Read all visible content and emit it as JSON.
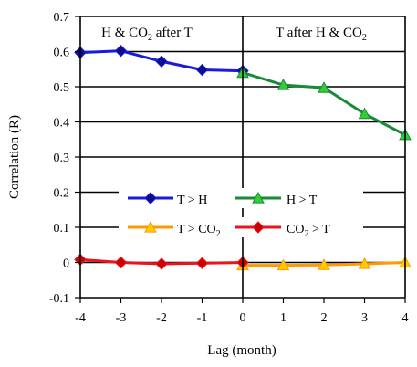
{
  "chart_data": {
    "type": "line",
    "xlabel": "Lag (month)",
    "ylabel": "Correlation (R)",
    "xlim": [
      -4,
      4
    ],
    "ylim": [
      -0.1,
      0.7
    ],
    "xticks": [
      -4,
      -3,
      -2,
      -1,
      0,
      1,
      2,
      3,
      4
    ],
    "yticks": [
      "-0.1",
      "0",
      "0.1",
      "0.2",
      "0.3",
      "0.4",
      "0.5",
      "0.6",
      "0.7"
    ],
    "grid": "horizontal",
    "annotations": {
      "left": {
        "pre": "H & CO",
        "sub": "2",
        "post": " after T"
      },
      "right": {
        "pre": "T after H & CO",
        "sub": "2",
        "post": ""
      }
    },
    "series": [
      {
        "name": "T > H",
        "legend": {
          "pre": "T > H",
          "sub": "",
          "post": ""
        },
        "color": "#1a1adb",
        "marker": "diamond",
        "marker_color": "#0d0d8a",
        "x": [
          -4,
          -3,
          -2,
          -1,
          0
        ],
        "y": [
          0.597,
          0.602,
          0.572,
          0.548,
          0.545
        ]
      },
      {
        "name": "H > T",
        "legend": {
          "pre": "H > T",
          "sub": "",
          "post": ""
        },
        "color": "#1a8a3a",
        "marker": "triangle",
        "marker_color": "#33cc33",
        "x": [
          0,
          1,
          2,
          3,
          4
        ],
        "y": [
          0.54,
          0.505,
          0.497,
          0.423,
          0.363
        ]
      },
      {
        "name": "T > CO2",
        "legend": {
          "pre": "T > CO",
          "sub": "2",
          "post": ""
        },
        "color": "#ff9900",
        "marker": "triangle",
        "marker_color": "#ffcc00",
        "x": [
          0,
          1,
          2,
          3,
          4
        ],
        "y": [
          -0.008,
          -0.008,
          -0.007,
          -0.004,
          0.0
        ]
      },
      {
        "name": "CO2 > T",
        "legend": {
          "pre": "CO",
          "sub": "2",
          "post": " > T"
        },
        "color": "#e8141e",
        "marker": "diamond",
        "marker_color": "#cc0000",
        "x": [
          -4,
          -3,
          -2,
          -1,
          0
        ],
        "y": [
          0.008,
          0.0,
          -0.004,
          -0.002,
          0.0
        ]
      }
    ]
  }
}
